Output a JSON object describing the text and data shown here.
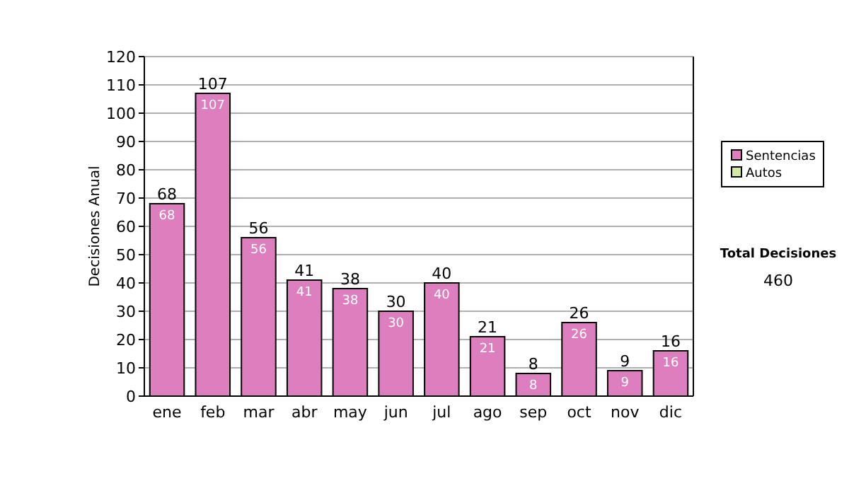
{
  "chart_data": {
    "type": "bar",
    "ylabel": "Decisiones Anual",
    "categories": [
      "ene",
      "feb",
      "mar",
      "abr",
      "may",
      "jun",
      "jul",
      "ago",
      "sep",
      "oct",
      "nov",
      "dic"
    ],
    "series": [
      {
        "name": "Sentencias",
        "color": "#dd7fbf",
        "values": [
          68,
          107,
          56,
          41,
          38,
          30,
          40,
          21,
          8,
          26,
          9,
          16
        ],
        "value_labels": [
          "68",
          "107",
          "56",
          "41",
          "38",
          "30",
          "40",
          "21",
          "8",
          "26",
          "9",
          "16"
        ]
      },
      {
        "name": "Autos",
        "color": "#d4e8a0",
        "values": [
          0,
          0,
          0,
          0,
          0,
          0,
          0,
          0,
          0,
          0,
          0,
          0
        ]
      }
    ],
    "stacked": true,
    "totals": [
      "68",
      "107",
      "56",
      "41",
      "38",
      "30",
      "40",
      "21",
      "8",
      "26",
      "9",
      "16"
    ],
    "ylim": [
      0,
      120
    ],
    "yticks": [
      0,
      10,
      20,
      30,
      40,
      50,
      60,
      70,
      80,
      90,
      100,
      110,
      120
    ],
    "grid": "y",
    "legend": "right",
    "annotations": [
      "Total Decisiones",
      "460"
    ]
  }
}
